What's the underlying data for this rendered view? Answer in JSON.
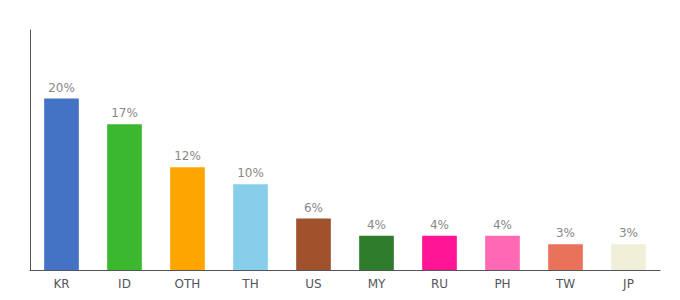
{
  "chart_data": {
    "type": "bar",
    "categories": [
      "KR",
      "ID",
      "OTH",
      "TH",
      "US",
      "MY",
      "RU",
      "PH",
      "TW",
      "JP"
    ],
    "values": [
      20,
      17,
      12,
      10,
      6,
      4,
      4,
      4,
      3,
      3
    ],
    "value_labels": [
      "20%",
      "17%",
      "12%",
      "10%",
      "6%",
      "4%",
      "4%",
      "4%",
      "3%",
      "3%"
    ],
    "colors": [
      "#4472c4",
      "#3cb82e",
      "#ffa500",
      "#87ceeb",
      "#a0522d",
      "#2d7d2d",
      "#ff1493",
      "#ff69b4",
      "#e8735a",
      "#f0f0d8"
    ],
    "data_labels": true,
    "ylim": [
      0,
      28
    ],
    "tick_labels": "x",
    "grid": false
  }
}
